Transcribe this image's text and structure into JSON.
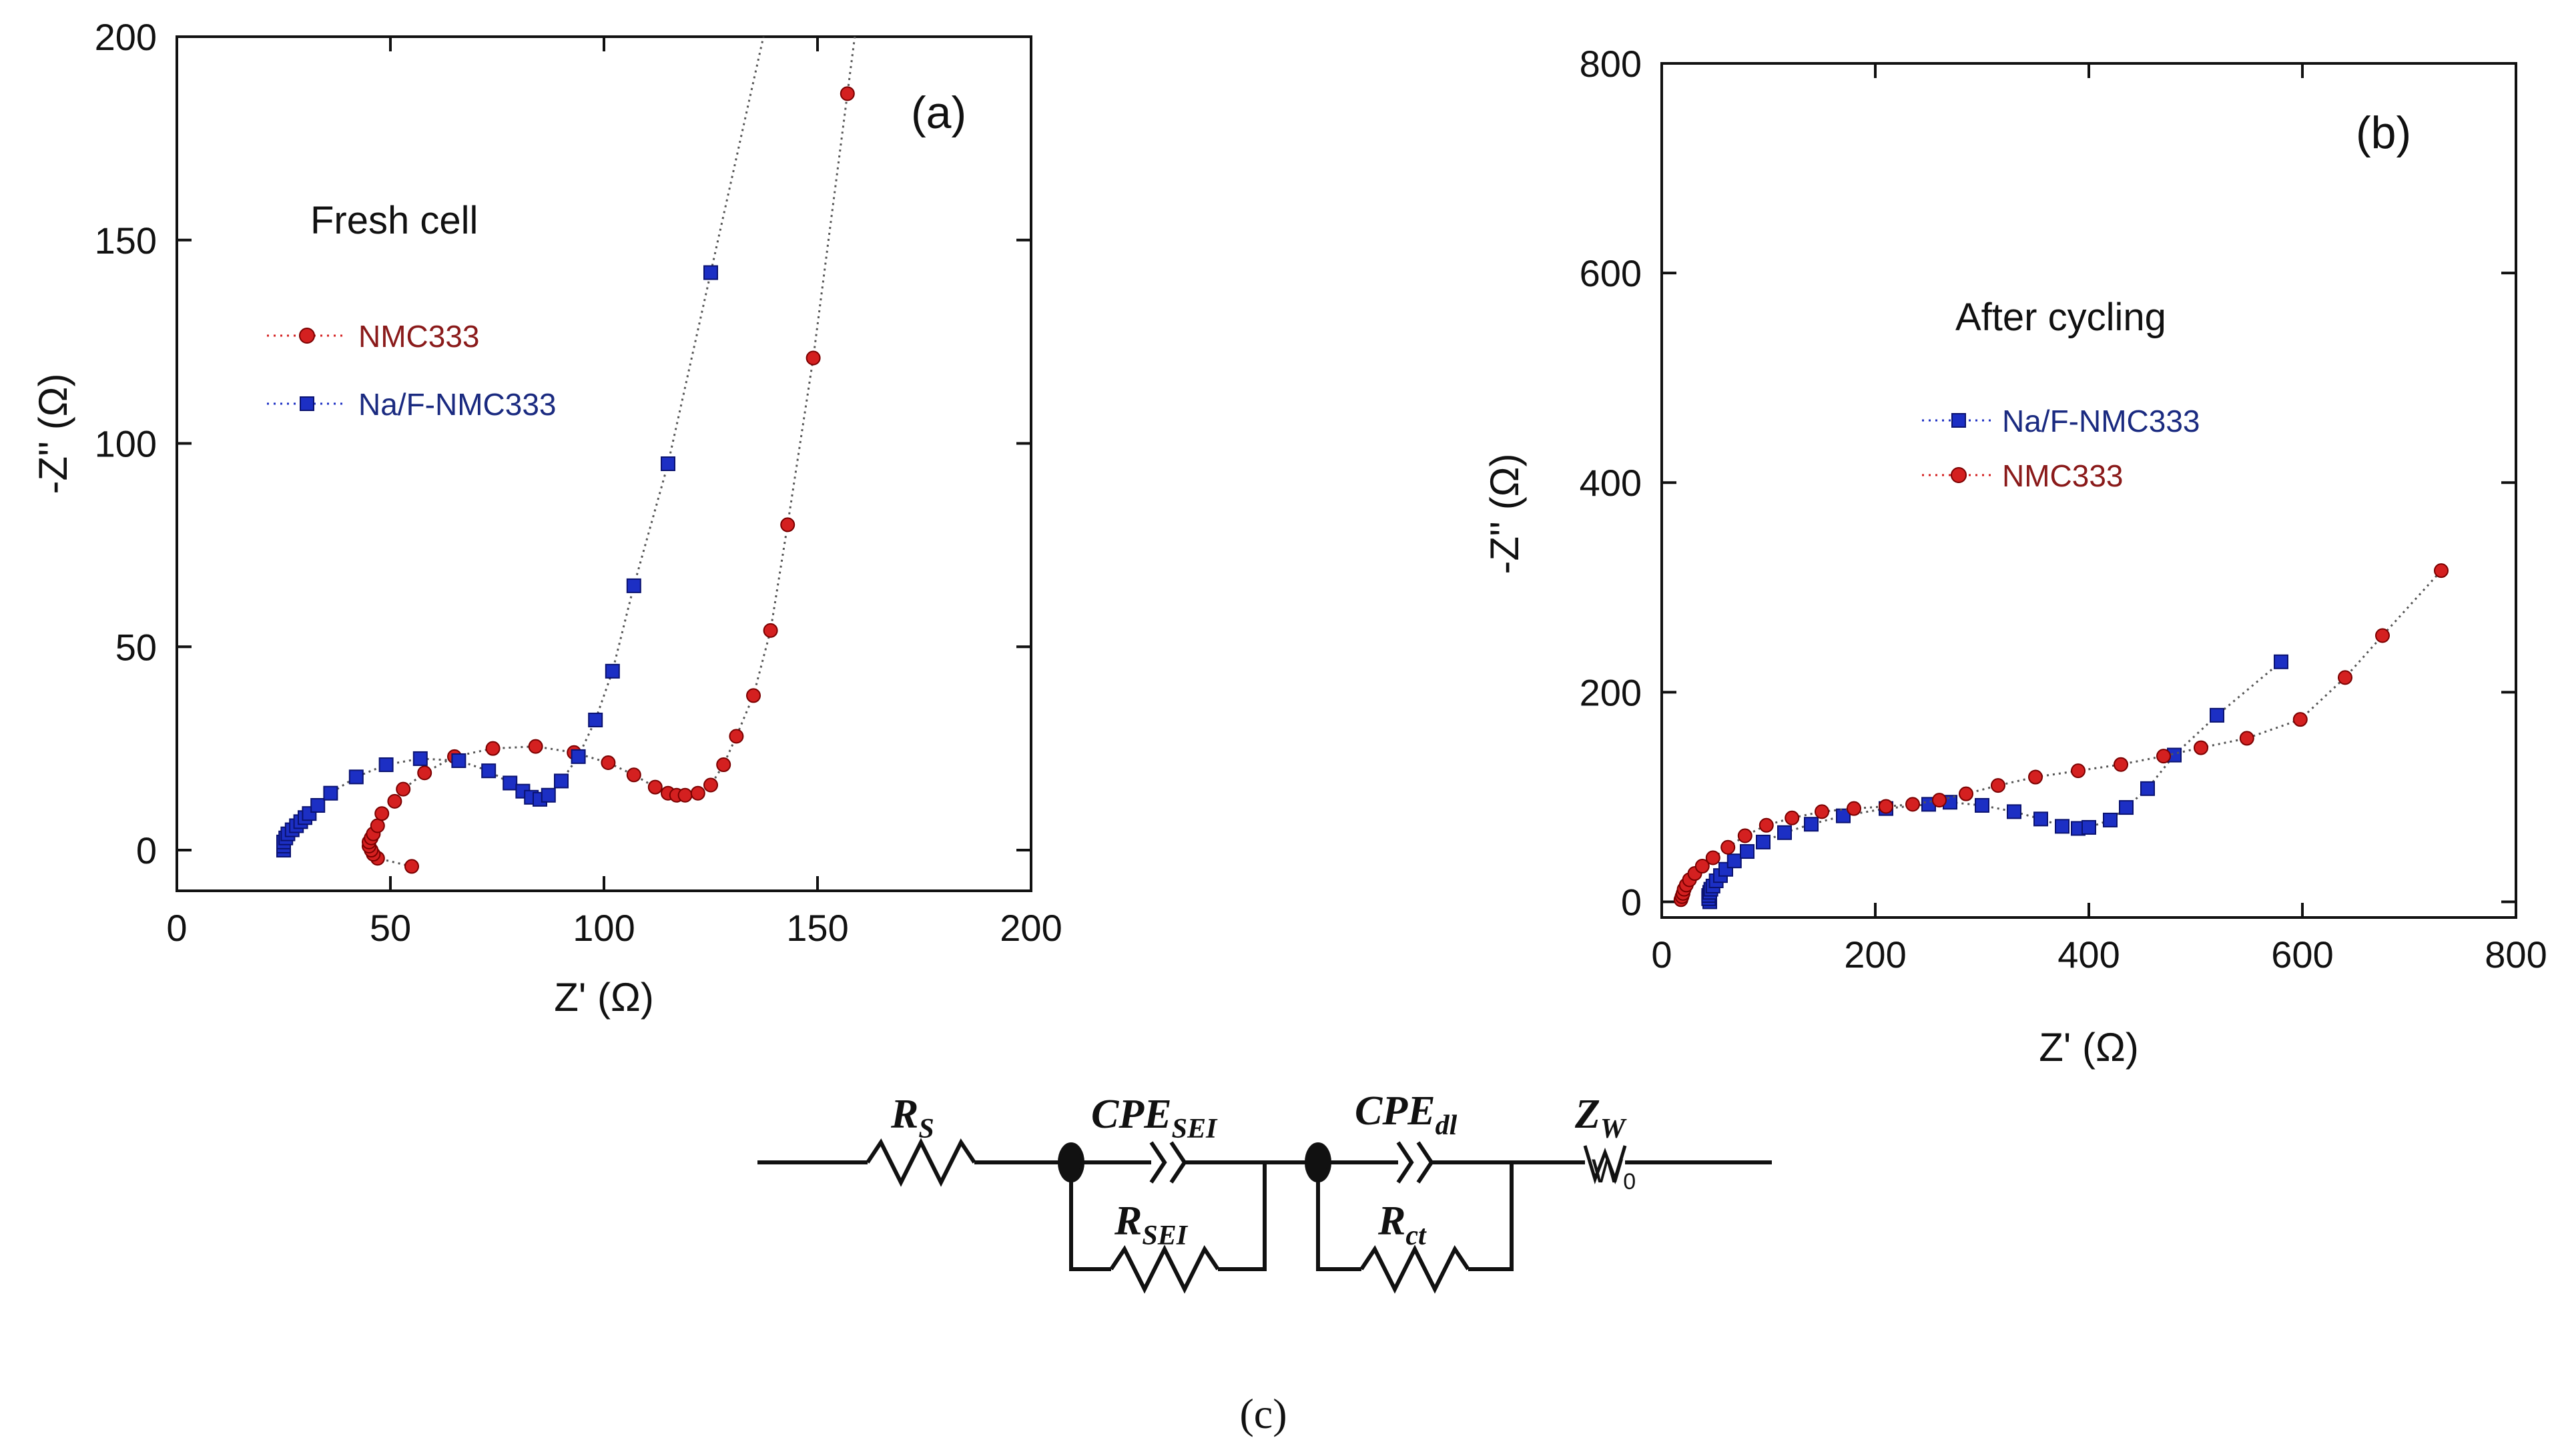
{
  "chart_data": [
    {
      "panel": "(a)",
      "type": "scatter",
      "annotation": "Fresh cell",
      "xlabel": "Z' (Ω)",
      "ylabel": "-Z'' (Ω)",
      "xlim": [
        0,
        200
      ],
      "ylim": [
        -10,
        200
      ],
      "xticks": [
        0,
        50,
        100,
        150,
        200
      ],
      "yticks": [
        0,
        50,
        100,
        150,
        200
      ],
      "legend_position": "upper-left",
      "series": [
        {
          "name": "NMC333",
          "marker": "circle",
          "color": "#d42020",
          "x": [
            55,
            47,
            46,
            45.5,
            45,
            45,
            45.5,
            46,
            47,
            48,
            51,
            53,
            58,
            65,
            74,
            84,
            93,
            101,
            107,
            112,
            115,
            117,
            119,
            122,
            125,
            128,
            131,
            135,
            139,
            143,
            149,
            157
          ],
          "y": [
            -4,
            -2,
            -1,
            0,
            1,
            2,
            3,
            4,
            6,
            9,
            12,
            15,
            19,
            23,
            25,
            25.5,
            24,
            21.5,
            18.5,
            15.5,
            14,
            13.5,
            13.5,
            14,
            16,
            21,
            28,
            38,
            54,
            80,
            121,
            186
          ]
        },
        {
          "name": "Na/F-NMC333",
          "marker": "square",
          "color": "#1c2fc4",
          "x": [
            25,
            25,
            25,
            25.5,
            26,
            27,
            28,
            29,
            30,
            31,
            33,
            36,
            42,
            49,
            57,
            66,
            73,
            78,
            81,
            83,
            85,
            87,
            90,
            94,
            98,
            102,
            107,
            115,
            125
          ],
          "y": [
            0,
            1,
            2,
            3,
            4,
            5,
            6,
            7,
            8,
            9,
            11,
            14,
            18,
            21,
            22.5,
            22,
            19.5,
            16.5,
            14.5,
            13,
            12.5,
            13.5,
            17,
            23,
            32,
            44,
            65,
            95,
            142
          ]
        }
      ]
    },
    {
      "panel": "(b)",
      "type": "scatter",
      "annotation": "After cycling",
      "xlabel": "Z' (Ω)",
      "ylabel": "-Z'' (Ω)",
      "xlim": [
        0,
        800
      ],
      "ylim": [
        -15,
        800
      ],
      "xticks": [
        0,
        200,
        400,
        600,
        800
      ],
      "yticks": [
        0,
        200,
        400,
        600,
        800
      ],
      "legend_position": "center-left",
      "series": [
        {
          "name": "Na/F-NMC333",
          "marker": "square",
          "color": "#1c2fc4",
          "x": [
            45,
            44,
            44,
            45,
            46,
            48,
            51,
            55,
            60,
            68,
            80,
            95,
            115,
            140,
            170,
            210,
            250,
            270,
            300,
            330,
            355,
            375,
            390,
            400,
            420,
            435,
            455,
            480,
            520,
            580
          ],
          "y": [
            0,
            3,
            6,
            9,
            12,
            15,
            20,
            25,
            31,
            39,
            48,
            57,
            66,
            74,
            82,
            89,
            93,
            95,
            92,
            86,
            79,
            72,
            70,
            71,
            78,
            90,
            108,
            140,
            178,
            229
          ]
        },
        {
          "name": "NMC333",
          "marker": "circle",
          "color": "#d42020",
          "x": [
            18,
            19,
            20,
            21,
            23,
            26,
            31,
            38,
            48,
            62,
            78,
            98,
            122,
            150,
            180,
            210,
            235,
            260,
            285,
            315,
            350,
            390,
            430,
            470,
            505,
            548,
            598,
            640,
            675,
            730
          ],
          "y": [
            2,
            5,
            8,
            12,
            16,
            21,
            27,
            34,
            42,
            52,
            63,
            73,
            80,
            86,
            89,
            91,
            93,
            97,
            103,
            111,
            119,
            125,
            131,
            139,
            147,
            156,
            174,
            214,
            254,
            316
          ]
        }
      ]
    }
  ],
  "circuit": {
    "labels": {
      "rs": "R",
      "rs_sub": "S",
      "cpe_sei": "CPE",
      "cpe_sei_sub": "SEI",
      "cpe_dl": "CPE",
      "cpe_dl_sub": "dl",
      "zw": "Z",
      "zw_sub": "W",
      "rsei": "R",
      "rsei_sub": "SEI",
      "rct": "R",
      "rct_sub": "ct",
      "warburg": "W",
      "warburg_sub": "0"
    },
    "caption": "(c)"
  }
}
